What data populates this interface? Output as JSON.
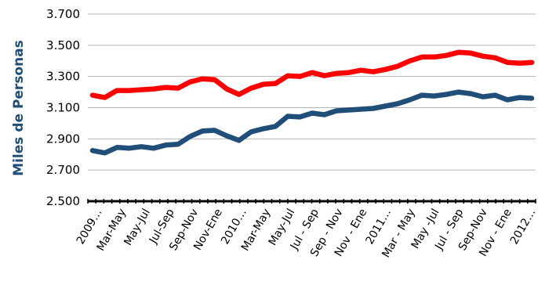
{
  "chart_data": {
    "type": "line",
    "title": "",
    "xlabel": "",
    "ylabel": "Miles de Personas",
    "ylim": [
      2500,
      3700
    ],
    "yticks": [
      "2.500",
      "2.700",
      "2.900",
      "3.100",
      "3.300",
      "3.500",
      "3.700"
    ],
    "ytick_values": [
      2500,
      2700,
      2900,
      3100,
      3300,
      3500,
      3700
    ],
    "grid": true,
    "legend": "none",
    "x_tick_labels": [
      "2009…",
      "Mar-May",
      "May-Jul",
      "Jul-Sep",
      "Sep-Nov",
      "Nov-Ene",
      "2010…",
      "Mar-May",
      "May-Jul",
      "Jul - Sep",
      "Sep - Nov",
      "Nov - Ene",
      "2011…",
      "Mar - May",
      "May -Jul",
      "Jul - Sep",
      "Sep-Nov",
      "Nov - Ene",
      "2012…"
    ],
    "series": [
      {
        "color": "#ff0000",
        "values": [
          3180,
          3165,
          3210,
          3210,
          3215,
          3220,
          3230,
          3225,
          3265,
          3285,
          3280,
          3220,
          3185,
          3225,
          3250,
          3255,
          3305,
          3300,
          3325,
          3305,
          3320,
          3325,
          3340,
          3330,
          3345,
          3365,
          3400,
          3425,
          3425,
          3435,
          3455,
          3450,
          3430,
          3420,
          3390,
          3385,
          3390
        ]
      },
      {
        "color": "#1f4e79",
        "values": [
          2825,
          2810,
          2845,
          2840,
          2850,
          2840,
          2860,
          2865,
          2915,
          2950,
          2955,
          2920,
          2890,
          2945,
          2965,
          2980,
          3045,
          3040,
          3065,
          3055,
          3080,
          3085,
          3090,
          3095,
          3110,
          3125,
          3150,
          3180,
          3175,
          3185,
          3200,
          3190,
          3170,
          3180,
          3150,
          3165,
          3160
        ]
      }
    ]
  }
}
